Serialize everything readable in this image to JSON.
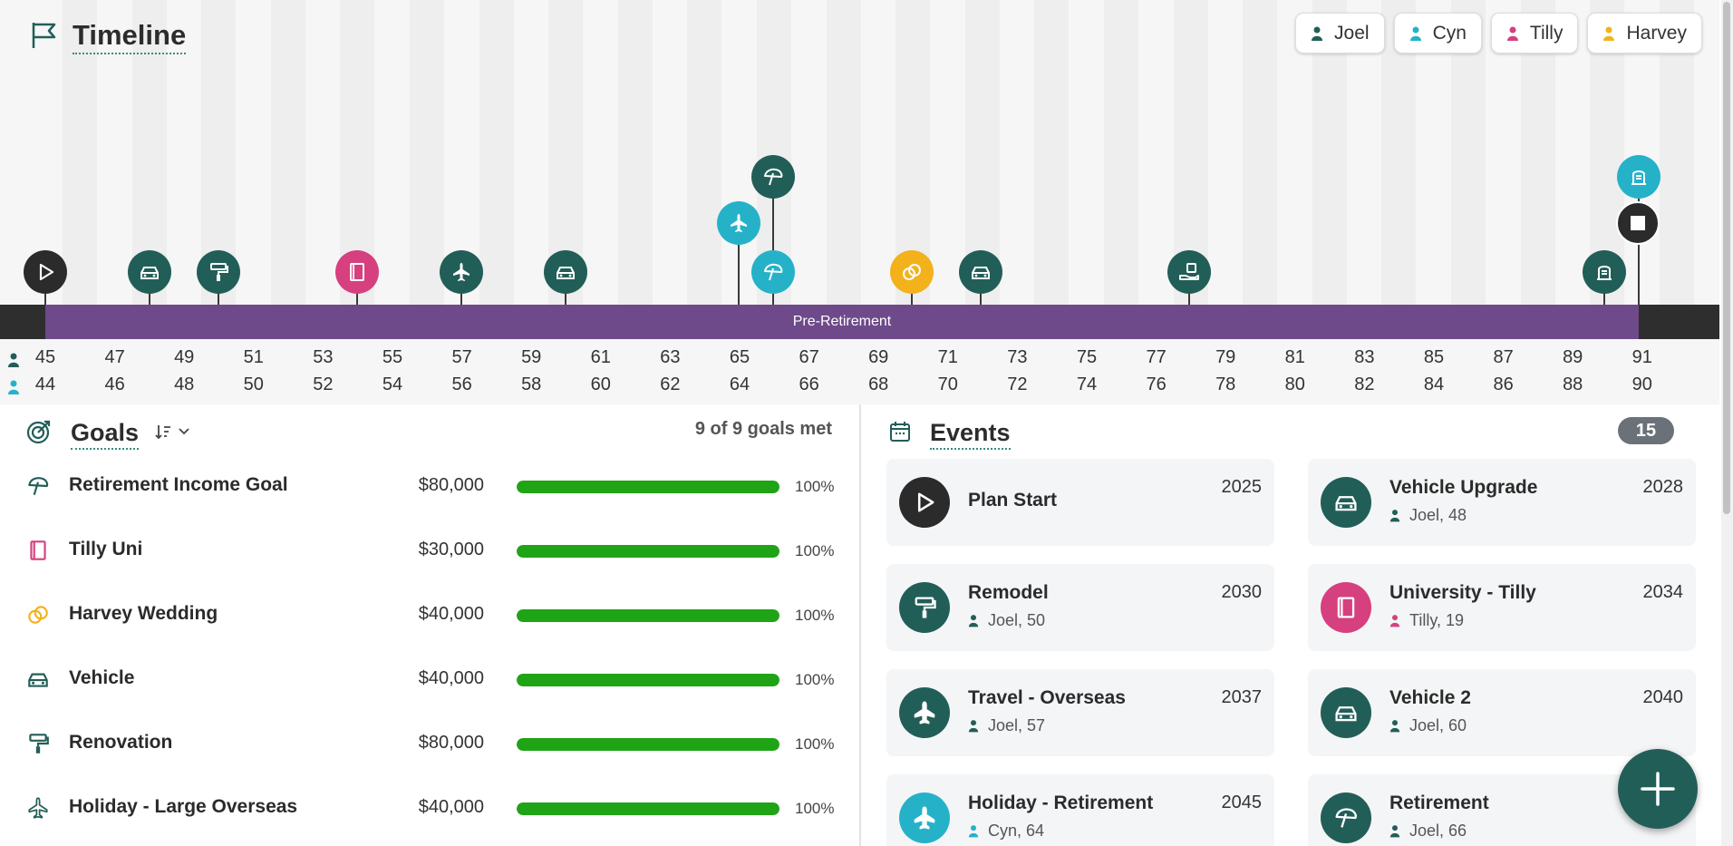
{
  "timeline": {
    "title": "Timeline",
    "people": [
      {
        "name": "Joel",
        "color": "#225e58"
      },
      {
        "name": "Cyn",
        "color": "#25b2c9"
      },
      {
        "name": "Tilly",
        "color": "#d6407f"
      },
      {
        "name": "Harvey",
        "color": "#f3b21b"
      }
    ],
    "band_label": "Pre-Retirement",
    "ages_joel": [
      "45",
      "47",
      "49",
      "51",
      "53",
      "55",
      "57",
      "59",
      "61",
      "63",
      "65",
      "67",
      "69",
      "71",
      "73",
      "75",
      "77",
      "79",
      "81",
      "83",
      "85",
      "87",
      "89",
      "91"
    ],
    "ages_cyn": [
      "44",
      "46",
      "48",
      "50",
      "52",
      "54",
      "56",
      "58",
      "60",
      "62",
      "64",
      "66",
      "68",
      "70",
      "72",
      "74",
      "76",
      "78",
      "80",
      "82",
      "84",
      "86",
      "88",
      "90"
    ]
  },
  "goals": {
    "title": "Goals",
    "met_summary": "9 of 9 goals met",
    "items": [
      {
        "name": "Retirement Income Goal",
        "amount": "$80,000",
        "progress": 1.0,
        "pct": "100%",
        "icon": "umbrella-icon",
        "color": "#225e58"
      },
      {
        "name": "Tilly Uni",
        "amount": "$30,000",
        "progress": 1.0,
        "pct": "100%",
        "icon": "book-icon",
        "color": "#d6407f"
      },
      {
        "name": "Harvey Wedding",
        "amount": "$40,000",
        "progress": 1.0,
        "pct": "100%",
        "icon": "rings-icon",
        "color": "#f3b21b"
      },
      {
        "name": "Vehicle",
        "amount": "$40,000",
        "progress": 1.0,
        "pct": "100%",
        "icon": "car-icon",
        "color": "#225e58"
      },
      {
        "name": "Renovation",
        "amount": "$80,000",
        "progress": 1.0,
        "pct": "100%",
        "icon": "paint-roller-icon",
        "color": "#225e58"
      },
      {
        "name": "Holiday - Large Overseas",
        "amount": "$40,000",
        "progress": 1.0,
        "pct": "100%",
        "icon": "plane-icon",
        "color": "#225e58"
      }
    ]
  },
  "events": {
    "title": "Events",
    "count": "15",
    "items": [
      {
        "name": "Plan Start",
        "year": "2025",
        "person": "",
        "icon": "play-icon",
        "color": "#2b2b2b"
      },
      {
        "name": "Vehicle Upgrade",
        "year": "2028",
        "person": "Joel, 48",
        "icon": "car-icon",
        "color": "#225e58"
      },
      {
        "name": "Remodel",
        "year": "2030",
        "person": "Joel, 50",
        "icon": "paint-roller-icon",
        "color": "#225e58"
      },
      {
        "name": "University - Tilly",
        "year": "2034",
        "person": "Tilly, 19",
        "icon": "book-icon",
        "color": "#d6407f"
      },
      {
        "name": "Travel - Overseas",
        "year": "2037",
        "person": "Joel, 57",
        "icon": "plane-icon",
        "color": "#225e58"
      },
      {
        "name": "Vehicle 2",
        "year": "2040",
        "person": "Joel, 60",
        "icon": "car-icon",
        "color": "#225e58"
      },
      {
        "name": "Holiday - Retirement",
        "year": "2045",
        "person": "Cyn, 64",
        "icon": "plane-icon",
        "color": "#25b2c9"
      },
      {
        "name": "Retirement",
        "year": "",
        "person": "Joel, 66",
        "icon": "umbrella-icon",
        "color": "#225e58"
      }
    ]
  }
}
